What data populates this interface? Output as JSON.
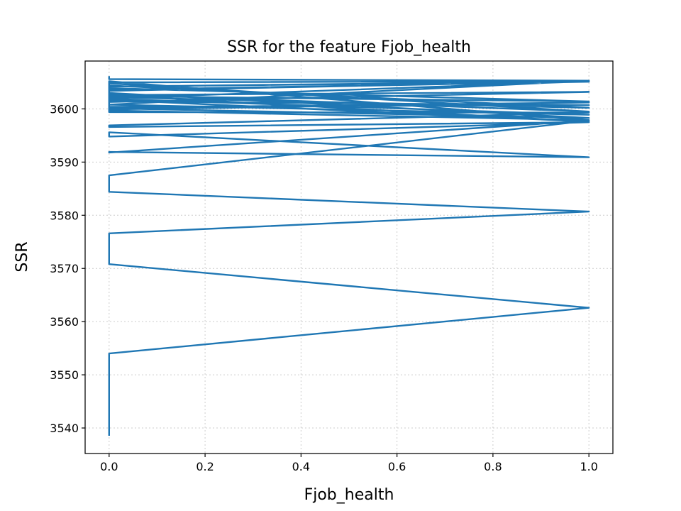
{
  "chart_data": {
    "type": "line",
    "title": "SSR for the feature Fjob_health",
    "xlabel": "Fjob_health",
    "ylabel": "SSR",
    "xlim": [
      -0.05,
      1.05
    ],
    "ylim": [
      3535.2,
      3609.0
    ],
    "xticks": [
      0.0,
      0.2,
      0.4,
      0.6,
      0.8,
      1.0
    ],
    "xtick_labels": [
      "0.0",
      "0.2",
      "0.4",
      "0.6",
      "0.8",
      "1.0"
    ],
    "yticks": [
      3540,
      3550,
      3560,
      3570,
      3580,
      3590,
      3600
    ],
    "ytick_labels": [
      "3540",
      "3550",
      "3560",
      "3570",
      "3580",
      "3590",
      "3600"
    ],
    "grid": true,
    "grid_style": "dotted",
    "legend": false,
    "colors": {
      "line": "#1f77b4",
      "grid": "#cccccc",
      "axes": "#000000"
    },
    "series": [
      {
        "x": [
          0,
          0,
          1,
          0,
          0,
          1,
          0,
          0,
          1,
          0,
          0,
          1,
          0,
          0,
          1,
          0,
          0,
          1,
          0,
          0,
          1,
          0,
          0,
          1,
          0,
          0,
          1,
          0,
          0,
          1,
          0,
          0,
          1,
          0,
          0,
          1,
          0,
          0,
          1,
          0,
          0,
          1,
          0,
          0,
          1,
          0,
          0,
          1,
          0,
          0,
          1,
          0,
          0,
          1,
          0,
          0,
          1,
          0,
          0,
          1,
          0,
          0
        ],
        "y": [
          3538.7,
          3554.0,
          3562.6,
          3570.8,
          3576.6,
          3580.7,
          3584.4,
          3587.5,
          3597.8,
          3591.8,
          3591.9,
          3590.9,
          3595.6,
          3594.8,
          3597.5,
          3596.6,
          3596.9,
          3599.3,
          3599.4,
          3600.2,
          3601.2,
          3599.9,
          3600.4,
          3600.7,
          3601.4,
          3601.3,
          3603.2,
          3602.6,
          3603.6,
          3605.1,
          3604.2,
          3605.0,
          3605.2,
          3603.4,
          3603.0,
          3598.3,
          3600.1,
          3601.7,
          3597.6,
          3602.6,
          3602.4,
          3601.4,
          3603.9,
          3604.4,
          3600.2,
          3602.2,
          3602.8,
          3599.5,
          3604.8,
          3605.2,
          3597.9,
          3599.7,
          3600.8,
          3598.9,
          3601.9,
          3602.0,
          3605.2,
          3604.2,
          3600.8,
          3605.3,
          3605.6,
          3606.0
        ]
      }
    ]
  }
}
